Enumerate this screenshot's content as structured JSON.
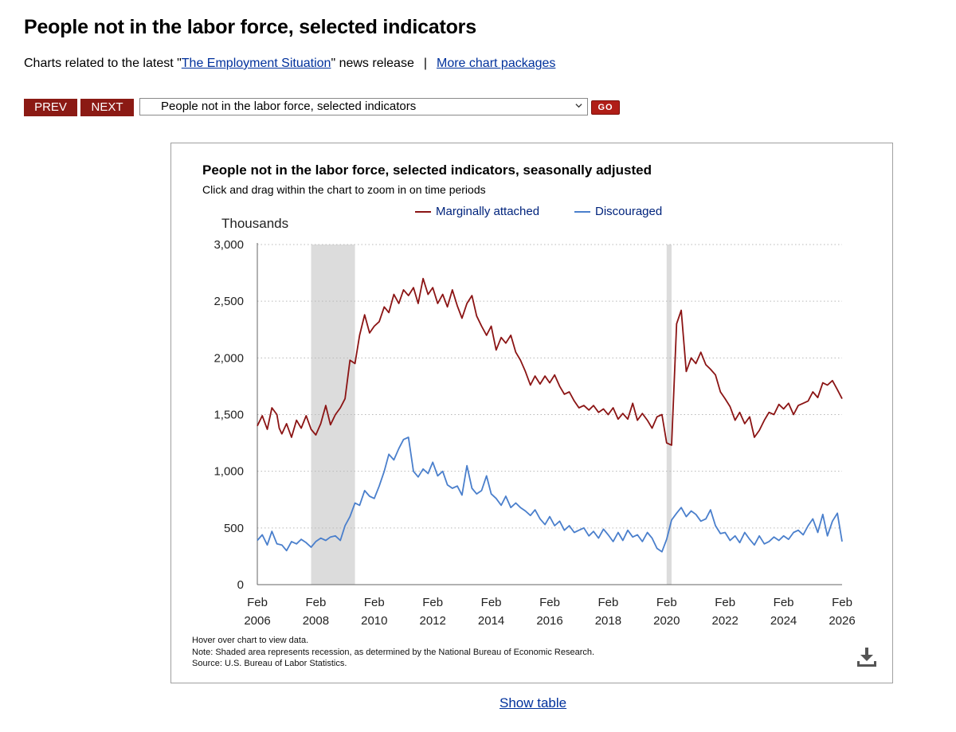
{
  "page": {
    "title": "People not in the labor force, selected indicators",
    "subline_prefix": "Charts related to the latest \"",
    "subline_link": "The Employment Situation",
    "subline_suffix": "\" news release",
    "separator": "|",
    "more_link": "More chart packages"
  },
  "nav": {
    "prev_label": "PREV",
    "next_label": "NEXT",
    "select_value": "People not in the labor force, selected indicators",
    "go_label": "GO"
  },
  "footer": {
    "show_table": "Show table"
  },
  "colors": {
    "marginal": "#8b1414",
    "discouraged": "#4a7fcc",
    "recession": "#dcdcdc",
    "nav_button": "#8b1a14"
  },
  "chart_data": {
    "type": "line",
    "title": "People not in the labor force, selected indicators, seasonally adjusted",
    "subtitle": "Click and drag within the chart to zoom in on time periods",
    "ylabel": "Thousands",
    "ylim": [
      0,
      3000
    ],
    "yticks": [
      "0",
      "500",
      "1,000",
      "1,500",
      "2,000",
      "2,500",
      "3,000"
    ],
    "xlim": [
      2006.08,
      2026.08
    ],
    "xticks": [
      {
        "month": "Feb",
        "year": "2006"
      },
      {
        "month": "Feb",
        "year": "2008"
      },
      {
        "month": "Feb",
        "year": "2010"
      },
      {
        "month": "Feb",
        "year": "2012"
      },
      {
        "month": "Feb",
        "year": "2014"
      },
      {
        "month": "Feb",
        "year": "2016"
      },
      {
        "month": "Feb",
        "year": "2018"
      },
      {
        "month": "Feb",
        "year": "2020"
      },
      {
        "month": "Feb",
        "year": "2022"
      },
      {
        "month": "Feb",
        "year": "2024"
      },
      {
        "month": "Feb",
        "year": "2026"
      }
    ],
    "recessions": [
      {
        "start": 2007.92,
        "end": 2009.42
      },
      {
        "start": 2020.08,
        "end": 2020.25
      }
    ],
    "series": [
      {
        "name": "Marginally attached",
        "points": [
          [
            2006.08,
            1400
          ],
          [
            2006.25,
            1490
          ],
          [
            2006.42,
            1370
          ],
          [
            2006.58,
            1560
          ],
          [
            2006.75,
            1500
          ],
          [
            2006.83,
            1380
          ],
          [
            2006.92,
            1330
          ],
          [
            2007.08,
            1420
          ],
          [
            2007.25,
            1300
          ],
          [
            2007.42,
            1450
          ],
          [
            2007.58,
            1380
          ],
          [
            2007.75,
            1490
          ],
          [
            2007.92,
            1370
          ],
          [
            2008.08,
            1320
          ],
          [
            2008.25,
            1420
          ],
          [
            2008.42,
            1580
          ],
          [
            2008.58,
            1410
          ],
          [
            2008.75,
            1500
          ],
          [
            2008.92,
            1560
          ],
          [
            2009.08,
            1640
          ],
          [
            2009.25,
            1980
          ],
          [
            2009.42,
            1950
          ],
          [
            2009.58,
            2200
          ],
          [
            2009.75,
            2380
          ],
          [
            2009.92,
            2220
          ],
          [
            2010.08,
            2280
          ],
          [
            2010.25,
            2320
          ],
          [
            2010.42,
            2450
          ],
          [
            2010.58,
            2400
          ],
          [
            2010.75,
            2560
          ],
          [
            2010.92,
            2480
          ],
          [
            2011.08,
            2600
          ],
          [
            2011.25,
            2550
          ],
          [
            2011.42,
            2620
          ],
          [
            2011.58,
            2480
          ],
          [
            2011.75,
            2700
          ],
          [
            2011.92,
            2560
          ],
          [
            2012.08,
            2620
          ],
          [
            2012.25,
            2480
          ],
          [
            2012.42,
            2560
          ],
          [
            2012.58,
            2450
          ],
          [
            2012.75,
            2600
          ],
          [
            2012.92,
            2460
          ],
          [
            2013.08,
            2350
          ],
          [
            2013.25,
            2480
          ],
          [
            2013.42,
            2550
          ],
          [
            2013.58,
            2370
          ],
          [
            2013.75,
            2280
          ],
          [
            2013.92,
            2200
          ],
          [
            2014.08,
            2280
          ],
          [
            2014.25,
            2070
          ],
          [
            2014.42,
            2180
          ],
          [
            2014.58,
            2130
          ],
          [
            2014.75,
            2200
          ],
          [
            2014.92,
            2050
          ],
          [
            2015.08,
            1980
          ],
          [
            2015.25,
            1880
          ],
          [
            2015.42,
            1760
          ],
          [
            2015.58,
            1840
          ],
          [
            2015.75,
            1770
          ],
          [
            2015.92,
            1840
          ],
          [
            2016.08,
            1780
          ],
          [
            2016.25,
            1850
          ],
          [
            2016.42,
            1750
          ],
          [
            2016.58,
            1680
          ],
          [
            2016.75,
            1700
          ],
          [
            2016.92,
            1620
          ],
          [
            2017.08,
            1560
          ],
          [
            2017.25,
            1580
          ],
          [
            2017.42,
            1540
          ],
          [
            2017.58,
            1580
          ],
          [
            2017.75,
            1520
          ],
          [
            2017.92,
            1550
          ],
          [
            2018.08,
            1500
          ],
          [
            2018.25,
            1560
          ],
          [
            2018.42,
            1460
          ],
          [
            2018.58,
            1510
          ],
          [
            2018.75,
            1460
          ],
          [
            2018.92,
            1600
          ],
          [
            2019.08,
            1450
          ],
          [
            2019.25,
            1510
          ],
          [
            2019.42,
            1450
          ],
          [
            2019.58,
            1380
          ],
          [
            2019.75,
            1480
          ],
          [
            2019.92,
            1500
          ],
          [
            2020.08,
            1250
          ],
          [
            2020.25,
            1230
          ],
          [
            2020.42,
            2300
          ],
          [
            2020.58,
            2420
          ],
          [
            2020.75,
            1880
          ],
          [
            2020.92,
            2000
          ],
          [
            2021.08,
            1950
          ],
          [
            2021.25,
            2050
          ],
          [
            2021.42,
            1940
          ],
          [
            2021.58,
            1900
          ],
          [
            2021.75,
            1850
          ],
          [
            2021.92,
            1700
          ],
          [
            2022.08,
            1640
          ],
          [
            2022.25,
            1570
          ],
          [
            2022.42,
            1450
          ],
          [
            2022.58,
            1520
          ],
          [
            2022.75,
            1420
          ],
          [
            2022.92,
            1480
          ],
          [
            2023.08,
            1300
          ],
          [
            2023.25,
            1360
          ],
          [
            2023.42,
            1450
          ],
          [
            2023.58,
            1520
          ],
          [
            2023.75,
            1500
          ],
          [
            2023.92,
            1590
          ],
          [
            2024.08,
            1550
          ],
          [
            2024.25,
            1600
          ],
          [
            2024.42,
            1500
          ],
          [
            2024.58,
            1580
          ],
          [
            2024.75,
            1600
          ],
          [
            2024.92,
            1620
          ],
          [
            2025.08,
            1700
          ],
          [
            2025.25,
            1650
          ],
          [
            2025.42,
            1780
          ],
          [
            2025.58,
            1760
          ],
          [
            2025.75,
            1800
          ],
          [
            2025.92,
            1720
          ],
          [
            2026.08,
            1640
          ]
        ]
      },
      {
        "name": "Discouraged",
        "points": [
          [
            2006.08,
            390
          ],
          [
            2006.25,
            440
          ],
          [
            2006.42,
            350
          ],
          [
            2006.58,
            470
          ],
          [
            2006.75,
            360
          ],
          [
            2006.92,
            350
          ],
          [
            2007.08,
            300
          ],
          [
            2007.25,
            380
          ],
          [
            2007.42,
            360
          ],
          [
            2007.58,
            400
          ],
          [
            2007.75,
            370
          ],
          [
            2007.92,
            330
          ],
          [
            2008.08,
            380
          ],
          [
            2008.25,
            410
          ],
          [
            2008.42,
            390
          ],
          [
            2008.58,
            420
          ],
          [
            2008.75,
            430
          ],
          [
            2008.92,
            390
          ],
          [
            2009.08,
            520
          ],
          [
            2009.25,
            600
          ],
          [
            2009.42,
            720
          ],
          [
            2009.58,
            700
          ],
          [
            2009.75,
            830
          ],
          [
            2009.92,
            780
          ],
          [
            2010.08,
            760
          ],
          [
            2010.25,
            870
          ],
          [
            2010.42,
            1000
          ],
          [
            2010.58,
            1150
          ],
          [
            2010.75,
            1100
          ],
          [
            2010.92,
            1200
          ],
          [
            2011.08,
            1280
          ],
          [
            2011.25,
            1300
          ],
          [
            2011.42,
            1000
          ],
          [
            2011.58,
            950
          ],
          [
            2011.75,
            1020
          ],
          [
            2011.92,
            980
          ],
          [
            2012.08,
            1080
          ],
          [
            2012.25,
            960
          ],
          [
            2012.42,
            1000
          ],
          [
            2012.58,
            880
          ],
          [
            2012.75,
            850
          ],
          [
            2012.92,
            870
          ],
          [
            2013.08,
            790
          ],
          [
            2013.25,
            1050
          ],
          [
            2013.42,
            850
          ],
          [
            2013.58,
            800
          ],
          [
            2013.75,
            830
          ],
          [
            2013.92,
            960
          ],
          [
            2014.08,
            800
          ],
          [
            2014.25,
            760
          ],
          [
            2014.42,
            700
          ],
          [
            2014.58,
            780
          ],
          [
            2014.75,
            680
          ],
          [
            2014.92,
            720
          ],
          [
            2015.08,
            680
          ],
          [
            2015.25,
            650
          ],
          [
            2015.42,
            610
          ],
          [
            2015.58,
            660
          ],
          [
            2015.75,
            580
          ],
          [
            2015.92,
            530
          ],
          [
            2016.08,
            600
          ],
          [
            2016.25,
            520
          ],
          [
            2016.42,
            560
          ],
          [
            2016.58,
            480
          ],
          [
            2016.75,
            520
          ],
          [
            2016.92,
            460
          ],
          [
            2017.08,
            480
          ],
          [
            2017.25,
            500
          ],
          [
            2017.42,
            430
          ],
          [
            2017.58,
            470
          ],
          [
            2017.75,
            410
          ],
          [
            2017.92,
            490
          ],
          [
            2018.08,
            440
          ],
          [
            2018.25,
            380
          ],
          [
            2018.42,
            460
          ],
          [
            2018.58,
            390
          ],
          [
            2018.75,
            480
          ],
          [
            2018.92,
            420
          ],
          [
            2019.08,
            440
          ],
          [
            2019.25,
            380
          ],
          [
            2019.42,
            460
          ],
          [
            2019.58,
            410
          ],
          [
            2019.75,
            320
          ],
          [
            2019.92,
            290
          ],
          [
            2020.08,
            400
          ],
          [
            2020.25,
            570
          ],
          [
            2020.42,
            630
          ],
          [
            2020.58,
            680
          ],
          [
            2020.75,
            600
          ],
          [
            2020.92,
            650
          ],
          [
            2021.08,
            620
          ],
          [
            2021.25,
            560
          ],
          [
            2021.42,
            580
          ],
          [
            2021.58,
            660
          ],
          [
            2021.75,
            520
          ],
          [
            2021.92,
            450
          ],
          [
            2022.08,
            460
          ],
          [
            2022.25,
            390
          ],
          [
            2022.42,
            430
          ],
          [
            2022.58,
            370
          ],
          [
            2022.75,
            460
          ],
          [
            2022.92,
            400
          ],
          [
            2023.08,
            350
          ],
          [
            2023.25,
            430
          ],
          [
            2023.42,
            360
          ],
          [
            2023.58,
            380
          ],
          [
            2023.75,
            420
          ],
          [
            2023.92,
            390
          ],
          [
            2024.08,
            430
          ],
          [
            2024.25,
            400
          ],
          [
            2024.42,
            460
          ],
          [
            2024.58,
            480
          ],
          [
            2024.75,
            440
          ],
          [
            2024.92,
            520
          ],
          [
            2025.08,
            580
          ],
          [
            2025.25,
            460
          ],
          [
            2025.42,
            620
          ],
          [
            2025.58,
            430
          ],
          [
            2025.75,
            560
          ],
          [
            2025.92,
            630
          ],
          [
            2026.08,
            380
          ]
        ]
      }
    ],
    "notes": [
      "Hover over chart to view data.",
      "Note: Shaded area represents recession, as determined by the National Bureau of Economic Research.",
      "Source: U.S. Bureau of Labor Statistics."
    ]
  }
}
